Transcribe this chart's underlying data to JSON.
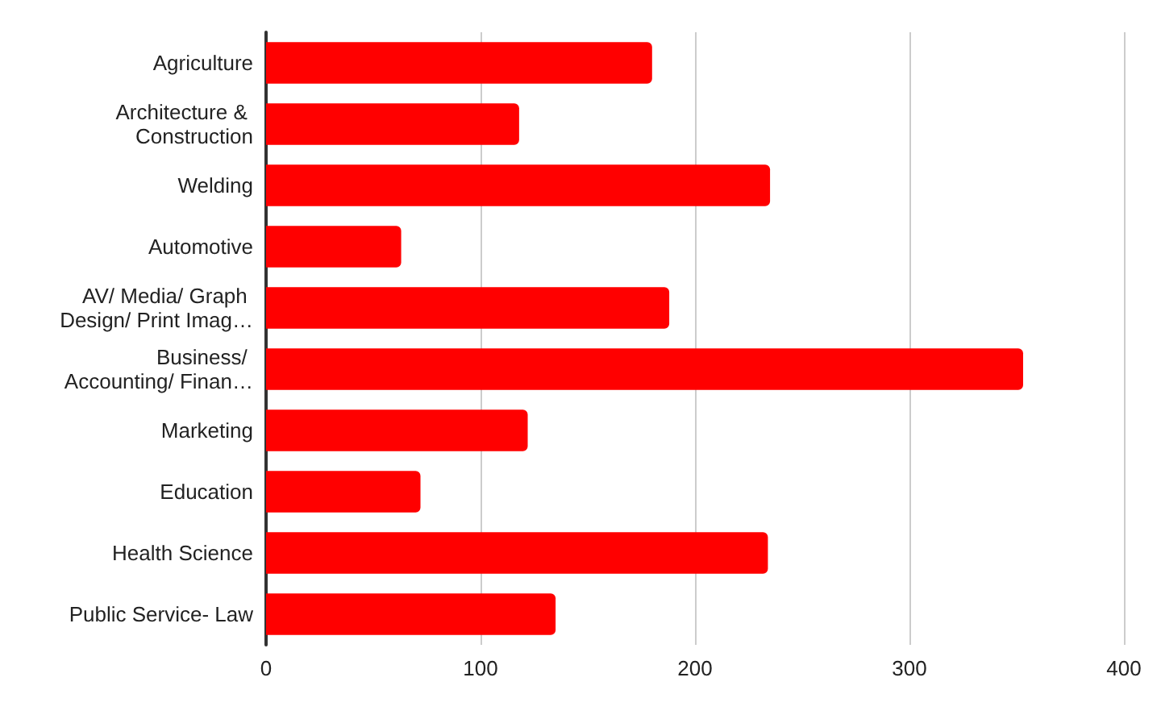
{
  "chart_data": {
    "type": "bar",
    "orientation": "horizontal",
    "categories": [
      "Agriculture",
      "Architecture & Construction",
      "Welding",
      "Automotive",
      "AV/ Media/ Graph Design/ Print Imag…",
      "Business/ Accounting/ Finan…",
      "Marketing",
      "Education",
      "Health Science",
      "Public Service- Law"
    ],
    "values": [
      180,
      118,
      235,
      63,
      188,
      353,
      122,
      72,
      234,
      135
    ],
    "color": "#ff0000",
    "xlim": [
      0,
      400
    ],
    "xticks": [
      0,
      100,
      200,
      300,
      400
    ],
    "grid": "x"
  }
}
